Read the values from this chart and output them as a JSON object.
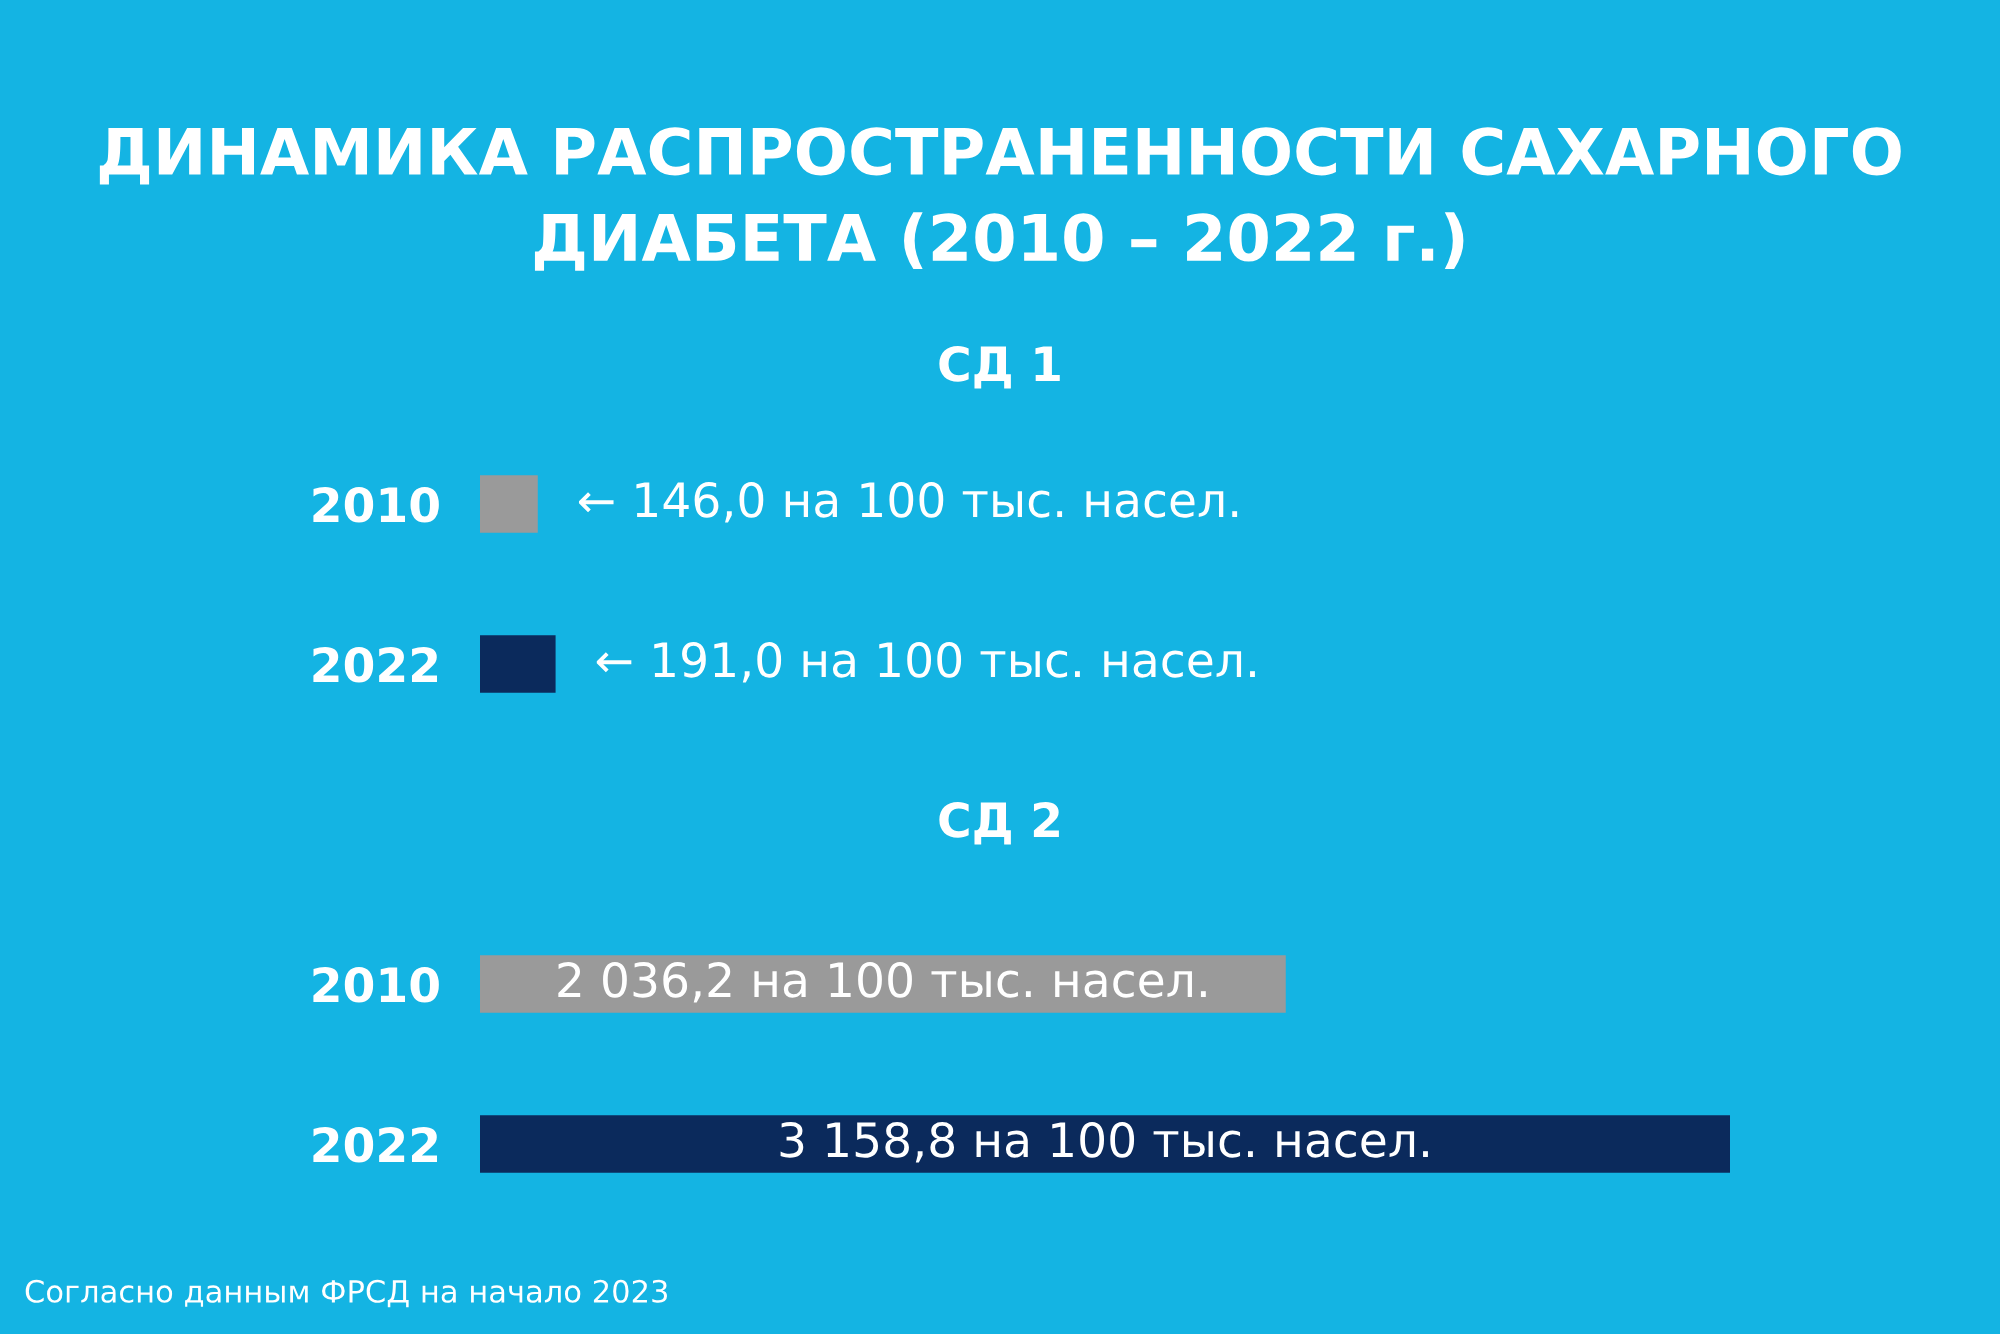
{
  "chart_data": {
    "type": "bar",
    "orientation": "horizontal",
    "title": "ДИНАМИКА РАСПРОСТРАНЕННОСТИ САХАРНОГО ДИАБЕТА (2010 – 2022 г.)",
    "categories": [
      "2010",
      "2022",
      null,
      "2010",
      "2022"
    ],
    "values": [
      146.0,
      191.0,
      null,
      2036.2,
      3158.8
    ],
    "colors": [
      "#9a9a9a",
      "#0b2a5c",
      null,
      "#9a9a9a",
      "#0b2a5c"
    ],
    "value_labels": [
      "← 146,0 на 100 тыс. насел.",
      "← 191,0 на 100 тыс. насел.",
      null,
      "2 036,2 на 100 тыс. насел.",
      "3 158,8 на 100 тыс. насел."
    ],
    "tick_labels": "y",
    "annotations": [
      "СД 1",
      "СД 2",
      "Согласно данным ФРСД на начало 2023"
    ]
  }
}
